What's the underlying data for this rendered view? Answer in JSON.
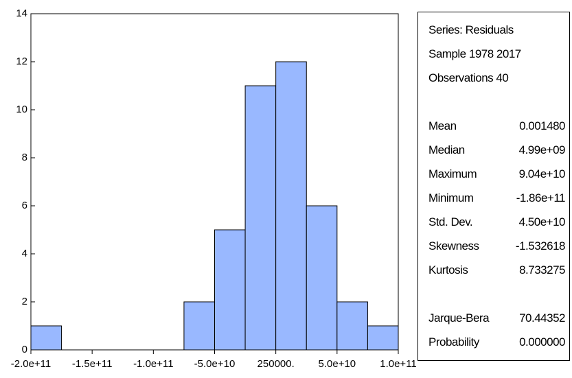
{
  "chart_data": {
    "type": "bar",
    "x_tick_labels": [
      "-2.0e+11",
      "-1.5e+11",
      "-1.0e+11",
      "-5.0e+10",
      "250000.",
      "5.0e+10",
      "1.0e+11"
    ],
    "x_ticks": [
      -200000000000.0,
      -150000000000.0,
      -100000000000.0,
      -50000000000.0,
      250000,
      50000000000.0,
      100000000000.0
    ],
    "bin_edges": [
      -200000000000.0,
      -175000000000.0,
      -150000000000.0,
      -125000000000.0,
      -100000000000.0,
      -75000000000.0,
      -50000000000.0,
      -25000000000.0,
      0,
      25000000000.0,
      50000000000.0,
      75000000000.0,
      100000000000.0
    ],
    "values": [
      1,
      0,
      0,
      0,
      0,
      2,
      5,
      11,
      12,
      6,
      2,
      1
    ],
    "xlim": [
      -200000000000.0,
      100000000000.0
    ],
    "ylim": [
      0,
      14
    ],
    "y_ticks": [
      0,
      2,
      4,
      6,
      8,
      10,
      12,
      14
    ],
    "bar_color": "#99b8ff",
    "grid": false
  },
  "stats": {
    "header": [
      "Series: Residuals",
      "Sample 1978 2017",
      "Observations 40"
    ],
    "rows": [
      {
        "name": "Mean",
        "value": "0.001480"
      },
      {
        "name": "Median",
        "value": "4.99e+09"
      },
      {
        "name": "Maximum",
        "value": "9.04e+10"
      },
      {
        "name": "Minimum",
        "value": "-1.86e+11"
      },
      {
        "name": "Std. Dev.",
        "value": "4.50e+10"
      },
      {
        "name": "Skewness",
        "value": "-1.532618"
      },
      {
        "name": "Kurtosis",
        "value": "8.733275"
      }
    ],
    "test_rows": [
      {
        "name": "Jarque-Bera",
        "value": "70.44352"
      },
      {
        "name": "Probability",
        "value": "0.000000"
      }
    ]
  }
}
